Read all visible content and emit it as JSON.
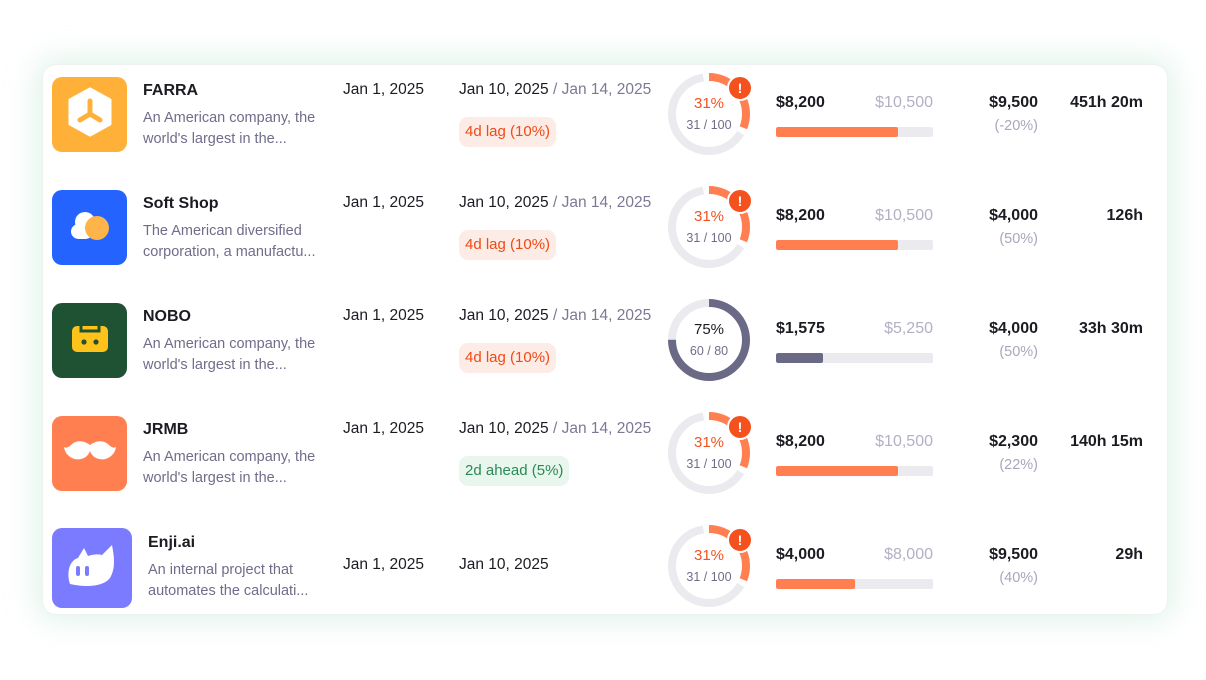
{
  "colors": {
    "orange": "#ff7f50",
    "dark": "#6b6a86",
    "track": "#ebebef",
    "alert": "#f4511e"
  },
  "projects": [
    {
      "name": "FARRA",
      "desc": "An American company, the world's largest in the...",
      "logo_color": "#ffb038",
      "icon": "hexagon-tri-icon",
      "start": "Jan 1, 2025",
      "end": "Jan 10, 2025",
      "sep": "/",
      "planned": "Jan 14, 2025",
      "badge": "4d lag (10%)",
      "badge_type": "lag",
      "progress_pct": "31%",
      "progress_frac": "31 / 100",
      "progress": 0.31,
      "alert": true,
      "alert_symbol": "!",
      "spent": "$8,200",
      "budget": "$10,500",
      "spent_ratio": 0.78,
      "amount": "$9,500",
      "amount_sub": "(-20%)",
      "hours": "451h 20m"
    },
    {
      "name": "Soft Shop",
      "desc": "The American diversified corporation, a manufactu...",
      "logo_color": "#2563ff",
      "icon": "cloud-icon",
      "start": "Jan 1, 2025",
      "end": "Jan 10, 2025",
      "sep": "/",
      "planned": "Jan 14, 2025",
      "badge": "4d lag (10%)",
      "badge_type": "lag",
      "progress_pct": "31%",
      "progress_frac": "31 / 100",
      "progress": 0.31,
      "alert": true,
      "alert_symbol": "!",
      "spent": "$8,200",
      "budget": "$10,500",
      "spent_ratio": 0.78,
      "amount": "$4,000",
      "amount_sub": "(50%)",
      "hours": "126h"
    },
    {
      "name": "NOBO",
      "desc": "An American company, the world's largest in the...",
      "logo_color": "#1e5233",
      "icon": "cassette-icon",
      "start": "Jan 1, 2025",
      "end": "Jan 10, 2025",
      "sep": "/",
      "planned": "Jan 14, 2025",
      "badge": "4d lag (10%)",
      "badge_type": "lag",
      "progress_pct": "75%",
      "progress_frac": "60 / 80",
      "progress": 0.75,
      "alert": false,
      "spent": "$1,575",
      "budget": "$5,250",
      "spent_ratio": 0.3,
      "amount": "$4,000",
      "amount_sub": "(50%)",
      "hours": "33h 30m"
    },
    {
      "name": "JRMB",
      "desc": "An American company, the world's largest in the...",
      "logo_color": "#ff7f50",
      "icon": "mustache-icon",
      "start": "Jan 1, 2025",
      "end": "Jan 10, 2025",
      "sep": "/",
      "planned": "Jan 14, 2025",
      "badge": "2d ahead (5%)",
      "badge_type": "ahead",
      "progress_pct": "31%",
      "progress_frac": "31 / 100",
      "progress": 0.31,
      "alert": true,
      "alert_symbol": "!",
      "spent": "$8,200",
      "budget": "$10,500",
      "spent_ratio": 0.78,
      "amount": "$2,300",
      "amount_sub": "(22%)",
      "hours": "140h 15m"
    },
    {
      "name": "Enji.ai",
      "desc": "An internal project that automates the calculati...",
      "logo_color": "#7b7bff",
      "icon": "cat-icon",
      "start": "Jan 1, 2025",
      "end": "Jan 10, 2025",
      "progress_pct": "31%",
      "progress_frac": "31 / 100",
      "progress": 0.31,
      "alert": true,
      "alert_symbol": "!",
      "spent": "$4,000",
      "budget": "$8,000",
      "spent_ratio": 0.5,
      "amount": "$9,500",
      "amount_sub": "(40%)",
      "hours": "29h"
    }
  ]
}
